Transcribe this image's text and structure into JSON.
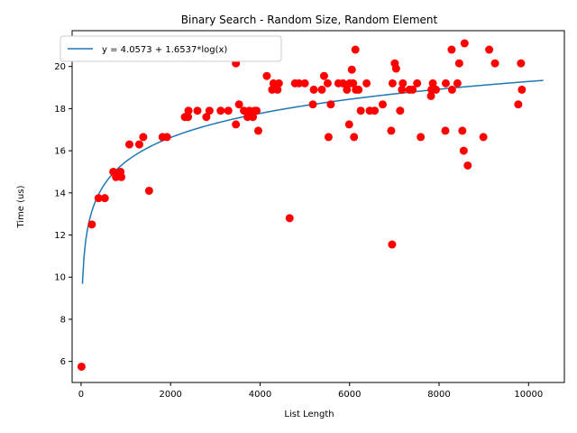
{
  "chart_data": {
    "type": "scatter",
    "title": "Binary Search - Random Size, Random Element",
    "xlabel": "List Length",
    "ylabel": "Time (us)",
    "xlim": [
      -200,
      10800
    ],
    "ylim": [
      5.0,
      21.7
    ],
    "xticks": [
      0,
      2000,
      4000,
      6000,
      8000,
      10000
    ],
    "yticks": [
      6,
      8,
      10,
      12,
      14,
      16,
      18,
      20
    ],
    "grid": false,
    "legend_position": "top-left",
    "colors": {
      "fit": "#1f77b4",
      "points": "#ff0000"
    },
    "fit": {
      "label": "y = 4.0573 + 1.6537*log(x)",
      "intercept": 4.0573,
      "coef": 1.6537,
      "x_start": 30,
      "x_end": 10330
    },
    "points": [
      [
        10,
        5.75
      ],
      [
        240,
        12.5
      ],
      [
        390,
        13.75
      ],
      [
        530,
        13.75
      ],
      [
        720,
        15.0
      ],
      [
        780,
        14.75
      ],
      [
        880,
        15.0
      ],
      [
        900,
        14.75
      ],
      [
        1080,
        16.3
      ],
      [
        1300,
        16.3
      ],
      [
        1390,
        16.65
      ],
      [
        1520,
        14.1
      ],
      [
        1820,
        16.65
      ],
      [
        1920,
        16.65
      ],
      [
        2320,
        17.6
      ],
      [
        2390,
        17.6
      ],
      [
        2400,
        17.9
      ],
      [
        2600,
        17.9
      ],
      [
        2800,
        17.6
      ],
      [
        2870,
        17.9
      ],
      [
        3120,
        17.9
      ],
      [
        3290,
        17.9
      ],
      [
        3460,
        20.15
      ],
      [
        3460,
        17.25
      ],
      [
        3530,
        18.2
      ],
      [
        3640,
        17.9
      ],
      [
        3720,
        17.6
      ],
      [
        3760,
        17.9
      ],
      [
        3840,
        17.6
      ],
      [
        3880,
        17.9
      ],
      [
        3920,
        17.9
      ],
      [
        3960,
        16.95
      ],
      [
        4150,
        19.55
      ],
      [
        4270,
        18.9
      ],
      [
        4300,
        19.2
      ],
      [
        4390,
        18.9
      ],
      [
        4420,
        19.2
      ],
      [
        4660,
        12.8
      ],
      [
        4780,
        19.2
      ],
      [
        4870,
        19.2
      ],
      [
        5000,
        19.2
      ],
      [
        5180,
        18.2
      ],
      [
        5200,
        18.9
      ],
      [
        5380,
        18.9
      ],
      [
        5430,
        19.55
      ],
      [
        5510,
        19.2
      ],
      [
        5530,
        16.65
      ],
      [
        5580,
        18.2
      ],
      [
        5750,
        19.2
      ],
      [
        5850,
        19.2
      ],
      [
        5940,
        18.9
      ],
      [
        5990,
        17.25
      ],
      [
        6000,
        19.2
      ],
      [
        6050,
        19.85
      ],
      [
        6080,
        19.2
      ],
      [
        6100,
        16.65
      ],
      [
        6130,
        20.8
      ],
      [
        6140,
        18.9
      ],
      [
        6200,
        18.9
      ],
      [
        6250,
        17.9
      ],
      [
        6380,
        19.2
      ],
      [
        6450,
        17.9
      ],
      [
        6560,
        17.9
      ],
      [
        6740,
        18.2
      ],
      [
        6930,
        16.95
      ],
      [
        6950,
        11.55
      ],
      [
        6960,
        19.2
      ],
      [
        7010,
        20.15
      ],
      [
        7040,
        19.9
      ],
      [
        7130,
        17.9
      ],
      [
        7170,
        18.9
      ],
      [
        7190,
        19.2
      ],
      [
        7340,
        18.9
      ],
      [
        7410,
        18.9
      ],
      [
        7510,
        19.2
      ],
      [
        7590,
        16.65
      ],
      [
        7820,
        18.6
      ],
      [
        7830,
        18.9
      ],
      [
        7860,
        19.2
      ],
      [
        7930,
        18.9
      ],
      [
        8140,
        16.95
      ],
      [
        8150,
        19.2
      ],
      [
        8280,
        20.8
      ],
      [
        8290,
        18.9
      ],
      [
        8410,
        19.2
      ],
      [
        8450,
        20.15
      ],
      [
        8520,
        16.95
      ],
      [
        8550,
        16.0
      ],
      [
        8570,
        21.1
      ],
      [
        8640,
        15.3
      ],
      [
        8990,
        16.65
      ],
      [
        9120,
        20.8
      ],
      [
        9250,
        20.15
      ],
      [
        9770,
        18.2
      ],
      [
        9830,
        20.15
      ],
      [
        9850,
        18.9
      ]
    ]
  }
}
